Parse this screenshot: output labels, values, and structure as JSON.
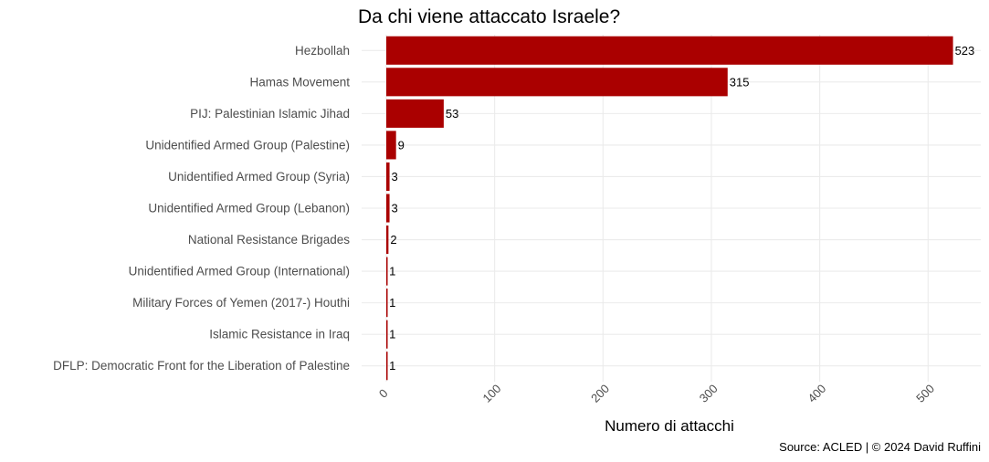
{
  "chart_data": {
    "type": "bar",
    "orientation": "horizontal",
    "title": "Da chi viene attaccato Israele?",
    "xlabel": "Numero di attacchi",
    "ylabel": "",
    "caption": "Source: ACLED | © 2024 David Ruffini",
    "categories": [
      "Hezbollah",
      "Hamas Movement",
      "PIJ: Palestinian Islamic Jihad",
      "Unidentified Armed Group (Palestine)",
      "Unidentified Armed Group (Syria)",
      "Unidentified Armed Group (Lebanon)",
      "National Resistance Brigades",
      "Unidentified Armed Group (International)",
      "Military Forces of Yemen (2017-) Houthi",
      "Islamic Resistance in Iraq",
      "DFLP: Democratic Front for the Liberation of Palestine"
    ],
    "values": [
      523,
      315,
      53,
      9,
      3,
      3,
      2,
      1,
      1,
      1,
      1
    ],
    "xlim": [
      0,
      550
    ],
    "xticks": [
      0,
      100,
      200,
      300,
      400,
      500
    ],
    "bar_color": "#aa0000",
    "grid": true
  }
}
